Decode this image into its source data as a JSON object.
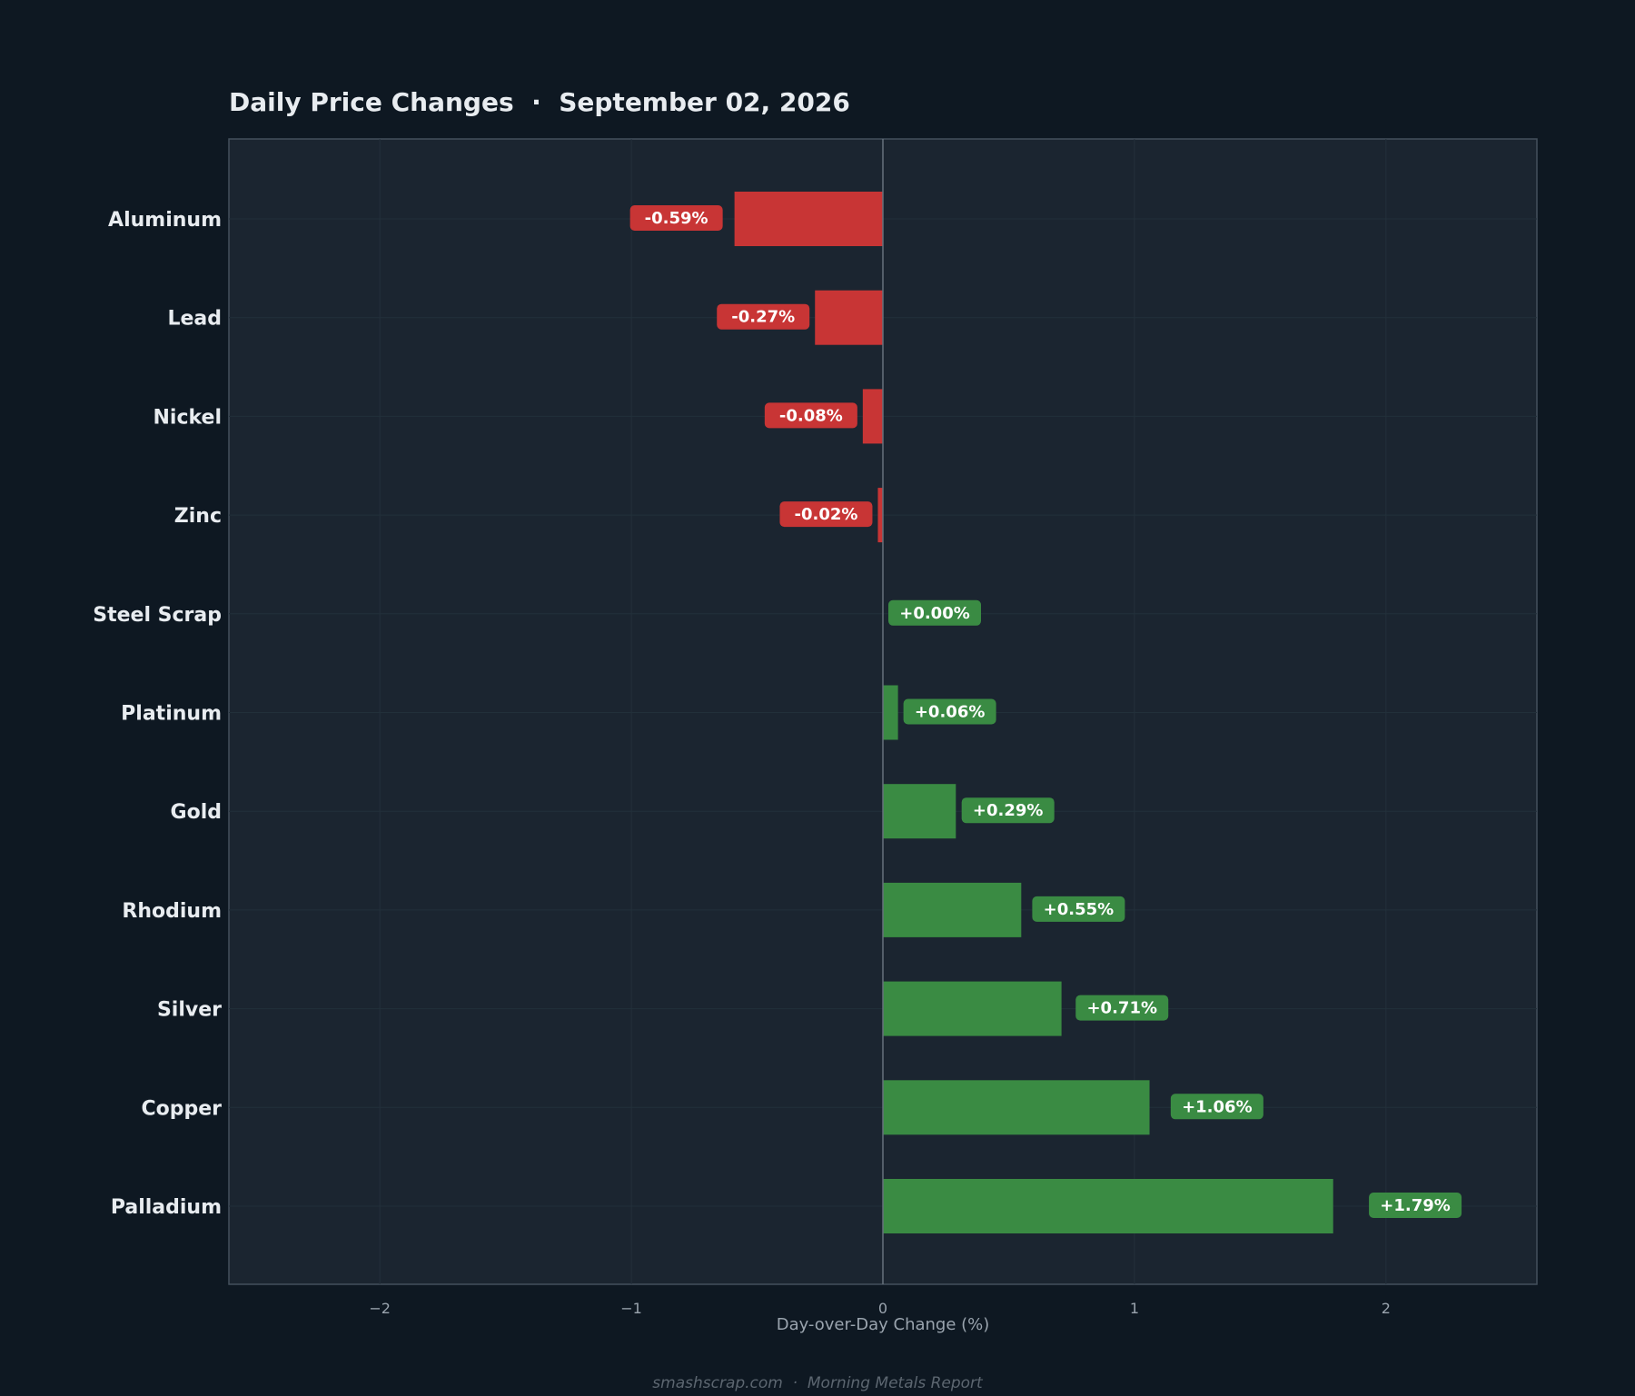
{
  "chart_data": {
    "type": "bar",
    "orientation": "horizontal",
    "title": "Daily Price Changes  ·  September 02, 2026",
    "xlabel": "Day-over-Day Change (%)",
    "xlim": [
      -2.6,
      2.6
    ],
    "x_ticks": [
      -2,
      -1,
      0,
      1,
      2
    ],
    "x_tick_labels": [
      "−2",
      "−1",
      "0",
      "1",
      "2"
    ],
    "grid": true,
    "categories": [
      "Aluminum",
      "Lead",
      "Nickel",
      "Zinc",
      "Steel Scrap",
      "Platinum",
      "Gold",
      "Rhodium",
      "Silver",
      "Copper",
      "Palladium"
    ],
    "values": [
      -0.59,
      -0.27,
      -0.08,
      -0.02,
      0.0,
      0.06,
      0.29,
      0.55,
      0.71,
      1.06,
      1.79
    ],
    "value_labels": [
      "-0.59%",
      "-0.27%",
      "-0.08%",
      "-0.02%",
      "+0.00%",
      "+0.06%",
      "+0.29%",
      "+0.55%",
      "+0.71%",
      "+1.06%",
      "+1.79%"
    ],
    "colors": {
      "negative": "#c83535",
      "positive": "#3a8b43",
      "plot_bg": "#1b2530",
      "page_bg": "#0e1822",
      "zero_line": "#66717c"
    }
  },
  "footer": "smashscrap.com  ·  Morning Metals Report"
}
